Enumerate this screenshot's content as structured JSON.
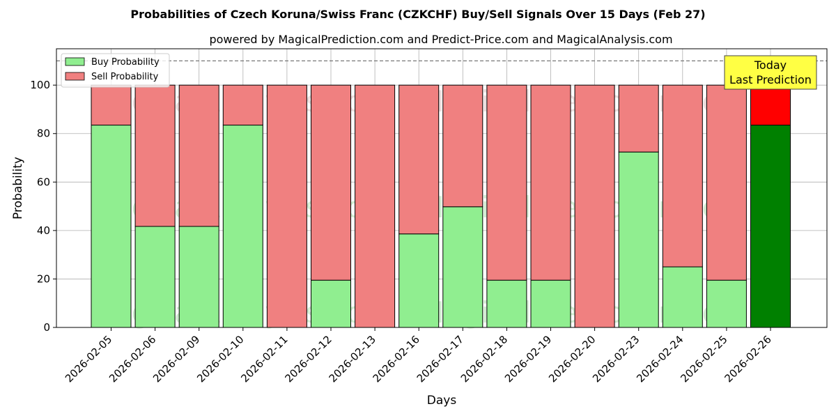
{
  "chart_data": {
    "type": "bar",
    "stacked": true,
    "title": "Probabilities of Czech Koruna/Swiss Franc (CZKCHF) Buy/Sell Signals Over 15 Days (Feb 27)",
    "subtitle": "powered by MagicalPrediction.com and Predict-Price.com and MagicalAnalysis.com",
    "xlabel": "Days",
    "ylabel": "Probability",
    "ylim": [
      0,
      115
    ],
    "yticks": [
      "0",
      "20",
      "40",
      "60",
      "80",
      "100"
    ],
    "grid": true,
    "legend_position": "top-left",
    "reference_line": 110,
    "categories": [
      "2026-02-05",
      "2026-02-06",
      "2026-02-09",
      "2026-02-10",
      "2026-02-11",
      "2026-02-12",
      "2026-02-13",
      "2026-02-16",
      "2026-02-17",
      "2026-02-18",
      "2026-02-19",
      "2026-02-20",
      "2026-02-23",
      "2026-02-24",
      "2026-02-25",
      "2026-02-26"
    ],
    "series": [
      {
        "name": "Buy Probability",
        "color": "#90ee90",
        "highlight_color": "#008000",
        "values": [
          83.5,
          41.7,
          41.7,
          83.5,
          0,
          19.5,
          0,
          38.6,
          49.8,
          19.5,
          19.5,
          0,
          72.4,
          25.0,
          19.5,
          83.5
        ]
      },
      {
        "name": "Sell Probability",
        "color": "#f08080",
        "highlight_color": "#ff0000",
        "values": [
          16.5,
          58.3,
          58.3,
          16.5,
          100,
          80.5,
          100,
          61.4,
          50.2,
          80.5,
          80.5,
          100,
          27.6,
          75.0,
          80.5,
          16.5
        ]
      }
    ],
    "annotation": {
      "line1": "Today",
      "line2": "Last Prediction",
      "color": "#ffff44"
    },
    "watermarks": [
      "MagicalAnalysis.com",
      "MagicalPrediction.com"
    ]
  }
}
